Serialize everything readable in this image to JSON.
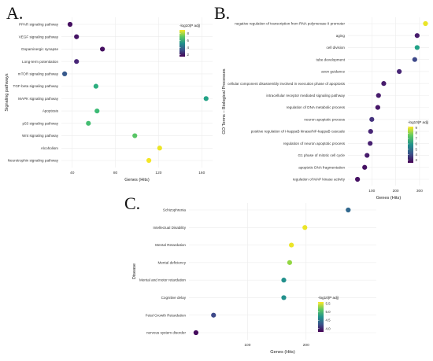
{
  "chart_data": [
    {
      "type": "scatter",
      "panel_label": "A.",
      "xlabel": "Genes (Hits)",
      "ylabel": "Signaling pathways",
      "xlim": [
        30,
        170
      ],
      "xticks": [
        40,
        80,
        120,
        160
      ],
      "legend_title": "-log10(P adj)",
      "color_range": [
        1.5,
        9
      ],
      "legend_ticks": [
        2,
        4,
        6,
        8
      ],
      "categories": [
        "PPAR signaling pathway",
        "VEGF signaling pathway",
        "Dopaminergic synapse",
        "Long-term potentiation",
        "mTOR signaling pathway",
        "TGF-beta signaling pathway",
        "MAPK signaling pathway",
        "Apoptosis",
        "p53 signaling pathway",
        "Wnt signaling pathway",
        "Alcoholism",
        "Neurotrophin signaling pathway"
      ],
      "values": [
        38,
        44,
        68,
        44,
        33,
        62,
        164,
        63,
        55,
        98,
        121,
        111
      ],
      "color_values": [
        1.8,
        1.9,
        1.8,
        2.3,
        3.6,
        6.2,
        5.8,
        6.6,
        6.7,
        7.0,
        8.8,
        8.9
      ]
    },
    {
      "type": "scatter",
      "panel_label": "B.",
      "xlabel": "Genes (Hits)",
      "ylabel": "GO Terms – Biological Processes",
      "xlim": [
        0,
        340
      ],
      "xticks": [
        100,
        200,
        300
      ],
      "legend_title": "-log10(P adj)",
      "color_range": [
        2.5,
        9.2
      ],
      "legend_ticks": [
        3,
        4,
        5,
        6,
        7,
        8,
        9
      ],
      "categories": [
        "negative regulation of transcription from RNA polymerase II promoter",
        "aging",
        "cell division",
        "tube development",
        "axon guidance",
        "cellular component disassembly involved in execution phase of apoptosis",
        "intracellular receptor mediated signaling pathway",
        "regulation of DNA metabolic process",
        "neuron apoptotic process",
        "positive regulation of I-kappaB kinase/NF-kappaB cascade",
        "regulation of neuron apoptotic process",
        "G1 phase of mitotic cell cycle",
        "apoptotic DNA fragmentation",
        "regulation of MAP kinase activity"
      ],
      "values": [
        325,
        290,
        290,
        280,
        215,
        150,
        128,
        125,
        100,
        95,
        93,
        80,
        70,
        40
      ],
      "color_values": [
        9.0,
        3.0,
        6.3,
        4.0,
        3.2,
        3.0,
        3.0,
        2.9,
        3.5,
        3.2,
        3.1,
        3.0,
        2.8,
        2.8
      ]
    },
    {
      "type": "scatter",
      "panel_label": "C.",
      "xlabel": "Genes (Hits)",
      "ylabel": "Disease",
      "xlim": [
        0,
        320
      ],
      "xticks": [
        100,
        200
      ],
      "legend_title": "-log10(P adj)",
      "color_range": [
        3.8,
        5.6
      ],
      "legend_ticks": [
        4.0,
        4.5,
        5.0,
        5.5
      ],
      "categories": [
        "Schizophrenia",
        "Intellectual Disability",
        "Mental Retardation",
        "Mental deficiency",
        "Mental and motor retardation",
        "Cognitive delay",
        "Fetal Growth Retardation",
        "nervous system disorder"
      ],
      "values": [
        272,
        198,
        175,
        172,
        162,
        162,
        42,
        12
      ],
      "color_values": [
        4.4,
        5.55,
        5.55,
        5.3,
        4.7,
        4.7,
        4.2,
        3.85
      ]
    }
  ]
}
